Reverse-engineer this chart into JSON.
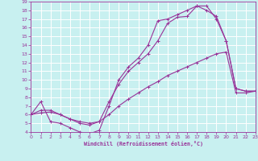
{
  "xlabel": "Windchill (Refroidissement éolien,°C)",
  "bg_color": "#c8f0f0",
  "grid_color": "#ffffff",
  "line_color": "#993399",
  "xmin": 0,
  "xmax": 23,
  "ymin": 4,
  "ymax": 19,
  "line1_x": [
    0,
    1,
    2,
    3,
    4,
    5,
    6,
    7,
    8,
    9,
    10,
    11,
    12,
    13,
    14,
    15,
    16,
    17,
    18,
    19,
    20,
    21,
    22,
    23
  ],
  "line1_y": [
    6.0,
    6.2,
    6.3,
    6.0,
    5.5,
    5.2,
    5.0,
    5.2,
    6.0,
    7.0,
    7.8,
    8.5,
    9.2,
    9.8,
    10.5,
    11.0,
    11.5,
    12.0,
    12.5,
    13.0,
    13.2,
    8.5,
    8.5,
    8.7
  ],
  "line2_x": [
    0,
    1,
    2,
    3,
    4,
    5,
    6,
    7,
    8,
    9,
    10,
    11,
    12,
    13,
    14,
    15,
    16,
    17,
    18,
    19,
    20,
    21,
    22,
    23
  ],
  "line2_y": [
    6.0,
    7.5,
    5.2,
    5.0,
    4.5,
    4.0,
    3.8,
    4.2,
    7.0,
    10.0,
    11.5,
    12.5,
    14.0,
    16.8,
    17.0,
    17.5,
    18.0,
    18.5,
    18.0,
    17.3,
    14.5,
    9.0,
    8.7,
    8.7
  ],
  "line3_x": [
    0,
    1,
    2,
    3,
    4,
    5,
    6,
    7,
    8,
    9,
    10,
    11,
    12,
    13,
    14,
    15,
    16,
    17,
    18,
    19,
    20,
    21,
    22,
    23
  ],
  "line3_y": [
    6.0,
    6.5,
    6.5,
    6.0,
    5.5,
    5.0,
    4.8,
    5.2,
    7.5,
    9.5,
    11.0,
    12.0,
    13.0,
    14.5,
    16.5,
    17.2,
    17.3,
    18.5,
    18.5,
    17.0,
    14.5,
    9.0,
    8.7,
    8.7
  ]
}
